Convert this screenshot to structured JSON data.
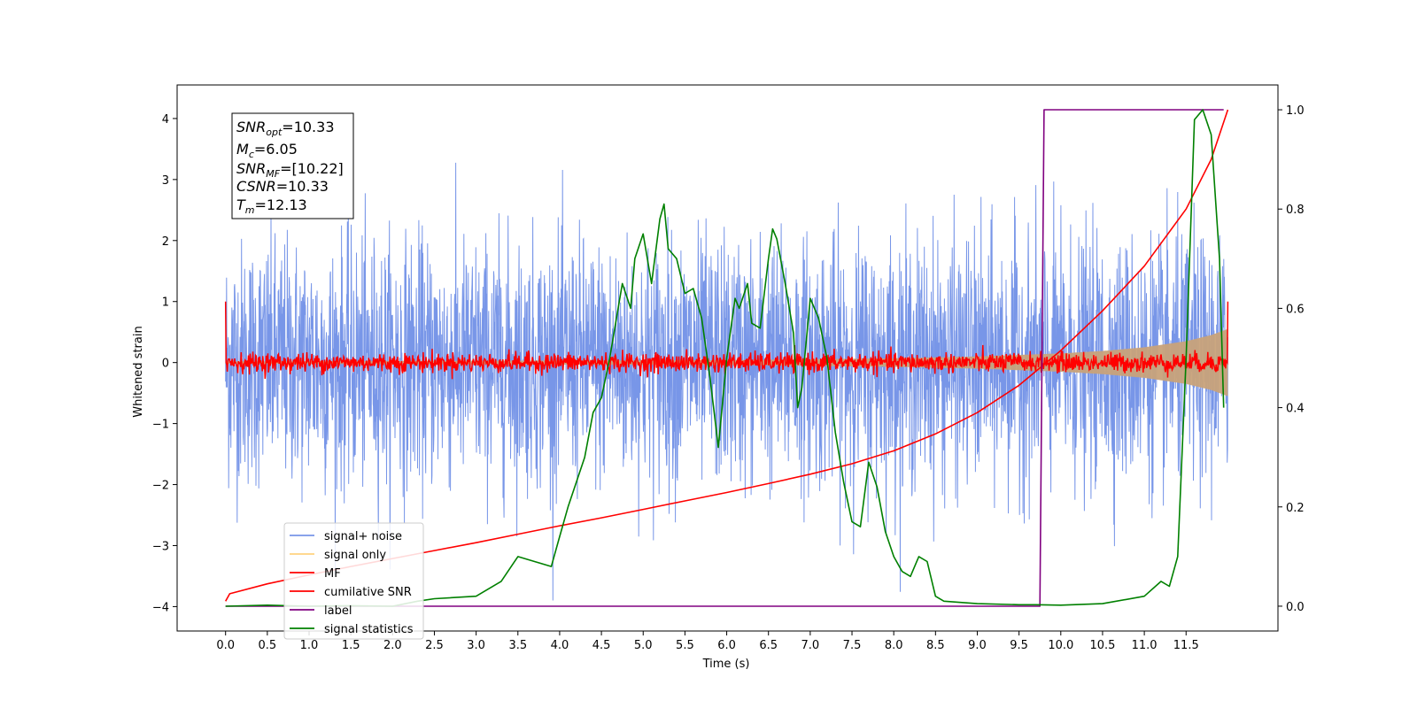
{
  "chart_data": {
    "type": "line",
    "xlabel": "Time (s)",
    "ylabel": "Whitened strain",
    "xlim": [
      -0.58,
      12.6
    ],
    "ylim": [
      -4.4,
      4.55
    ],
    "y2lim": [
      -0.05,
      1.05
    ],
    "x_ticks": [
      "0.0",
      "0.5",
      "1.0",
      "1.5",
      "2.0",
      "2.5",
      "3.0",
      "3.5",
      "4.0",
      "4.5",
      "5.0",
      "5.5",
      "6.0",
      "6.5",
      "7.0",
      "7.5",
      "8.0",
      "8.5",
      "9.0",
      "9.5",
      "10.0",
      "10.5",
      "11.0",
      "11.5"
    ],
    "y_ticks": [
      "4",
      "3",
      "2",
      "1",
      "0",
      "−1",
      "−2",
      "−3",
      "−4"
    ],
    "y2_ticks": [
      "1.0",
      "0.8",
      "0.6",
      "0.4",
      "0.2",
      "0.0"
    ],
    "grid": false,
    "legend_position": "lower-left",
    "annotation": {
      "snr_opt_label": "SNR",
      "snr_opt_sub": "opt",
      "snr_opt_value": "=10.33",
      "mc_label": "M",
      "mc_sub": "c",
      "mc_value": "=6.05",
      "snr_mf_label": "SNR",
      "snr_mf_sub": "MF",
      "snr_mf_value": "=[10.22]",
      "csnr_label": "CSNR",
      "csnr_value": "=10.33",
      "tm_label": "T",
      "tm_sub": "m",
      "tm_value": "=12.13"
    },
    "series": [
      {
        "name": "signal+ noise",
        "color": "#7896e8",
        "axis": "left",
        "kind": "noise",
        "x_range": [
          0,
          12.0
        ],
        "sigma": 1.0
      },
      {
        "name": "signal only",
        "color": "#c8a27a",
        "axis": "left",
        "kind": "chirp_envelope",
        "x": [
          0,
          6,
          8,
          9,
          10,
          10.5,
          11,
          11.5,
          11.8,
          12.0
        ],
        "amplitude": [
          0.02,
          0.04,
          0.07,
          0.1,
          0.15,
          0.19,
          0.25,
          0.35,
          0.45,
          0.55
        ]
      },
      {
        "name": "MF",
        "color": "#ff0000",
        "axis": "left",
        "kind": "noise",
        "x_range": [
          0,
          12.0
        ],
        "sigma": 0.08
      },
      {
        "name": "cumilative SNR",
        "color": "#ff0000",
        "axis": "right",
        "x": [
          0,
          0.05,
          0.5,
          1.0,
          1.5,
          2.0,
          2.5,
          3.0,
          3.5,
          4.0,
          4.5,
          5.0,
          5.5,
          6.0,
          6.5,
          7.0,
          7.5,
          8.0,
          8.5,
          9.0,
          9.5,
          10.0,
          10.5,
          11.0,
          11.5,
          11.8,
          12.0
        ],
        "values": [
          0.01,
          0.025,
          0.045,
          0.063,
          0.08,
          0.096,
          0.112,
          0.128,
          0.145,
          0.162,
          0.178,
          0.195,
          0.212,
          0.229,
          0.247,
          0.266,
          0.287,
          0.313,
          0.347,
          0.39,
          0.445,
          0.515,
          0.595,
          0.685,
          0.8,
          0.9,
          1.0
        ]
      },
      {
        "name": "label",
        "color": "#800080",
        "axis": "right",
        "x": [
          0,
          9.75,
          9.8,
          11.95
        ],
        "values": [
          0,
          0,
          1,
          1
        ]
      },
      {
        "name": "signal statistics",
        "color": "#008000",
        "axis": "right",
        "x": [
          0,
          0.5,
          1.0,
          1.5,
          2.0,
          2.3,
          2.5,
          3.0,
          3.3,
          3.5,
          3.7,
          3.9,
          4.0,
          4.1,
          4.2,
          4.3,
          4.4,
          4.5,
          4.6,
          4.65,
          4.75,
          4.85,
          4.9,
          5.0,
          5.1,
          5.2,
          5.25,
          5.3,
          5.4,
          5.5,
          5.6,
          5.7,
          5.8,
          5.9,
          6.0,
          6.1,
          6.15,
          6.25,
          6.3,
          6.4,
          6.5,
          6.55,
          6.6,
          6.7,
          6.8,
          6.85,
          6.9,
          7.0,
          7.1,
          7.2,
          7.3,
          7.4,
          7.5,
          7.6,
          7.7,
          7.8,
          7.9,
          8.0,
          8.1,
          8.2,
          8.3,
          8.4,
          8.5,
          8.6,
          9.0,
          9.5,
          9.7,
          10.0,
          10.5,
          11.0,
          11.2,
          11.3,
          11.4,
          11.5,
          11.6,
          11.7,
          11.8,
          11.9,
          11.95
        ],
        "values": [
          0,
          0.002,
          0.0,
          0.001,
          0.0,
          0.01,
          0.015,
          0.02,
          0.05,
          0.1,
          0.09,
          0.08,
          0.14,
          0.2,
          0.25,
          0.3,
          0.39,
          0.42,
          0.5,
          0.55,
          0.65,
          0.6,
          0.7,
          0.75,
          0.65,
          0.78,
          0.81,
          0.72,
          0.7,
          0.63,
          0.64,
          0.58,
          0.46,
          0.32,
          0.5,
          0.62,
          0.6,
          0.65,
          0.57,
          0.56,
          0.7,
          0.76,
          0.74,
          0.65,
          0.55,
          0.4,
          0.44,
          0.62,
          0.58,
          0.5,
          0.35,
          0.25,
          0.17,
          0.16,
          0.29,
          0.24,
          0.15,
          0.1,
          0.07,
          0.06,
          0.1,
          0.09,
          0.02,
          0.01,
          0.005,
          0.003,
          0.003,
          0.002,
          0.005,
          0.02,
          0.05,
          0.04,
          0.1,
          0.5,
          0.98,
          1.0,
          0.95,
          0.7,
          0.4
        ]
      }
    ]
  }
}
